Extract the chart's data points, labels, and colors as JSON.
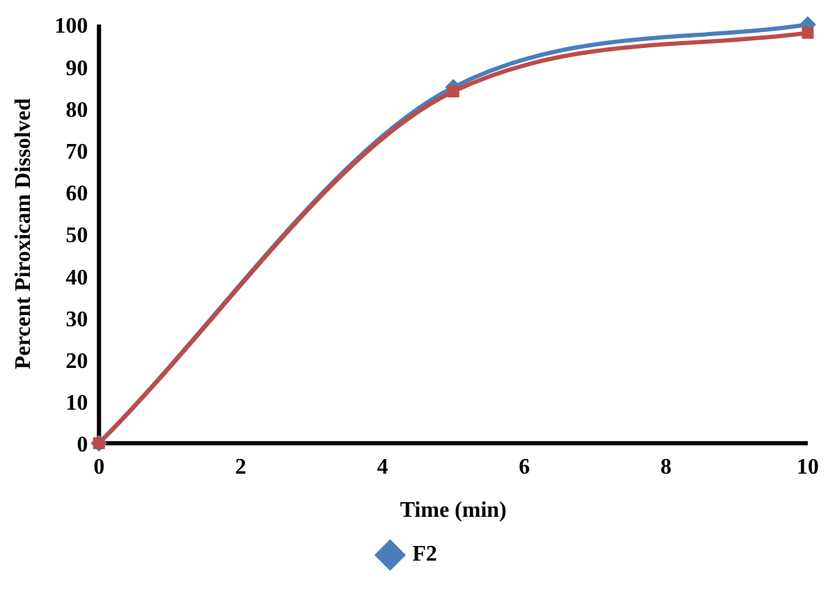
{
  "chart_data": {
    "type": "line",
    "xlabel": "Time (min)",
    "ylabel": "Percent Piroxicam Dissolved",
    "x": [
      0,
      5,
      10
    ],
    "series": [
      {
        "name": "F2",
        "color": "#4a7ebb",
        "marker": "diamond",
        "values": [
          0,
          85,
          100
        ]
      },
      {
        "color": "#be4b48",
        "marker": "square",
        "values": [
          0,
          84,
          98
        ]
      }
    ],
    "xlim": [
      0,
      10
    ],
    "xticks": [
      0,
      2,
      4,
      6,
      8,
      10
    ],
    "ylim": [
      0,
      100
    ],
    "yticks": [
      0,
      10,
      20,
      30,
      40,
      50,
      60,
      70,
      80,
      90,
      100
    ],
    "grid": false,
    "legend": "bottom",
    "line_style": "solid"
  }
}
